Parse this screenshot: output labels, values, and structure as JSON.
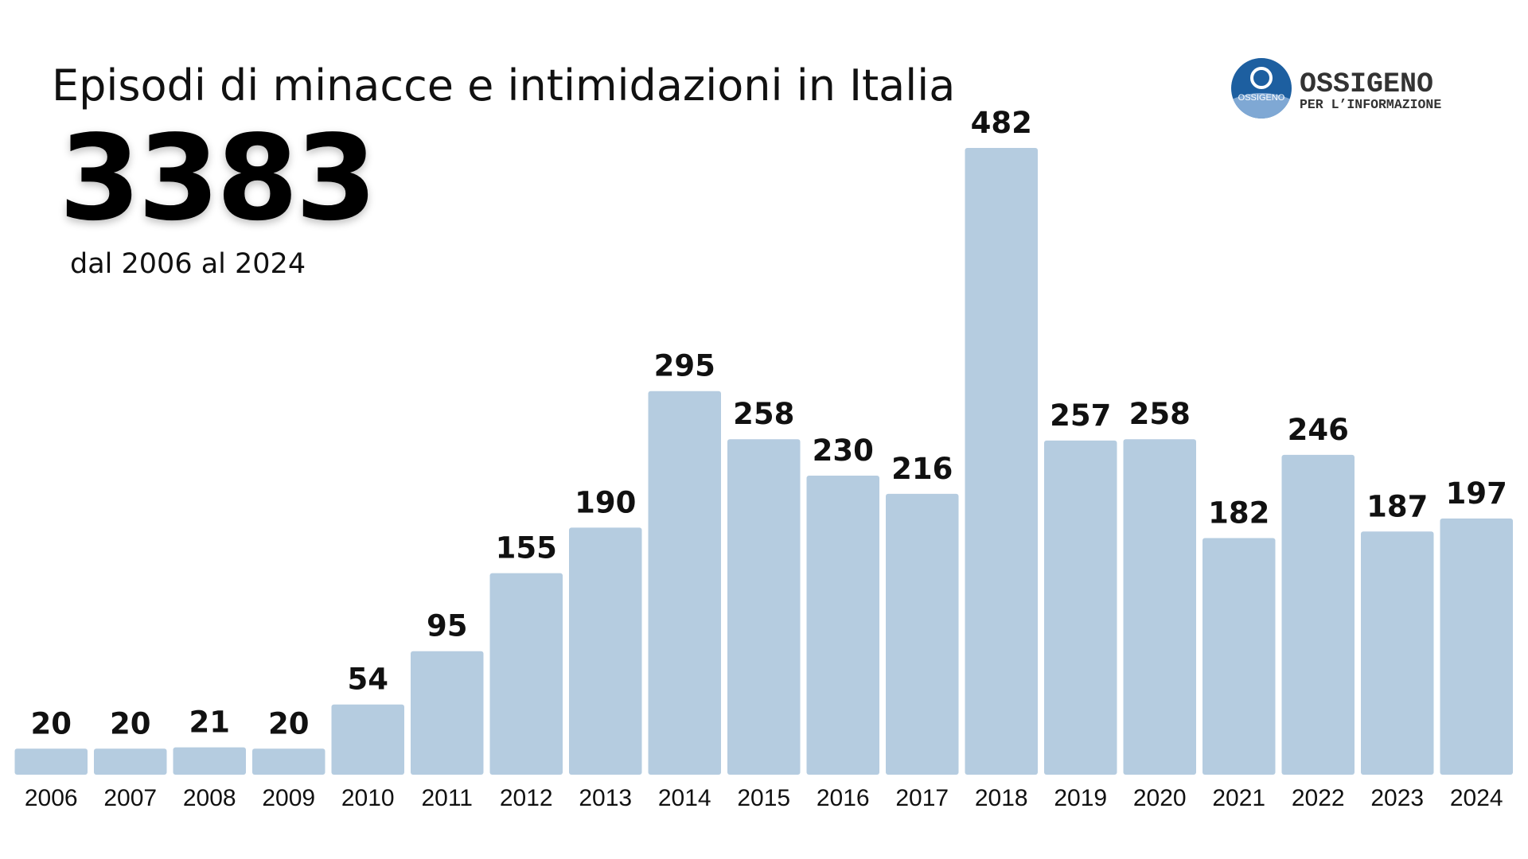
{
  "header": {
    "title": "Episodi di minacce e intimidazioni in Italia",
    "total": "3383",
    "subtitle": "dal 2006 al 2024"
  },
  "logo": {
    "name": "OSSIGENO",
    "tagline": "PER L’INFORMAZIONE",
    "badge_text": "OSSIGENO",
    "colors": {
      "dark_blue": "#1d5fa0",
      "light_blue": "#7fa8d4"
    }
  },
  "chart_data": {
    "type": "bar",
    "title": "Episodi di minacce e intimidazioni in Italia",
    "xlabel": "",
    "ylabel": "",
    "ylim": [
      0,
      482
    ],
    "grid": false,
    "bar_color": "#b5cce0",
    "categories": [
      "2006",
      "2007",
      "2008",
      "2009",
      "2010",
      "2011",
      "2012",
      "2013",
      "2014",
      "2015",
      "2016",
      "2017",
      "2018",
      "2019",
      "2020",
      "2021",
      "2022",
      "2023",
      "2024"
    ],
    "values": [
      20,
      20,
      21,
      20,
      54,
      95,
      155,
      190,
      295,
      258,
      230,
      216,
      482,
      257,
      258,
      182,
      246,
      187,
      197
    ]
  }
}
